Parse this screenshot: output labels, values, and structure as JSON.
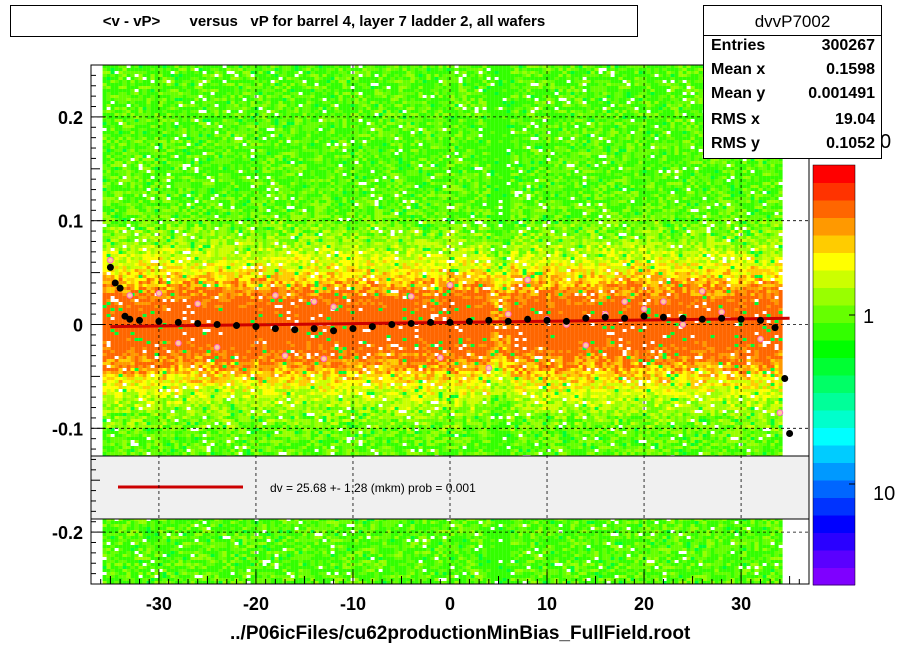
{
  "title": "<v - vP>       versus   vP for barrel 4, layer 7 ladder 2, all wafers",
  "stats": {
    "name": "dvvP7002",
    "rows": [
      {
        "label": "Entries",
        "value": "300267"
      },
      {
        "label": "Mean x",
        "value": "0.1598"
      },
      {
        "label": "Mean y",
        "value": "0.001491"
      },
      {
        "label": "RMS x",
        "value": "19.04"
      },
      {
        "label": "RMS y",
        "value": "0.1052"
      }
    ]
  },
  "footer": "../P06icFiles/cu62productionMinBias_FullField.root",
  "legend": {
    "text": "dv =   25.68 +-  1.28 (mkm) prob = 0.001",
    "line_color": "#cc0000"
  },
  "colors": {
    "fit_line": "#cc0000",
    "profile_points": "#000000",
    "open_markers": "#ff66cc"
  },
  "chart_data": {
    "type": "heatmap",
    "xlim": [
      -37,
      37
    ],
    "ylim": [
      -0.25,
      0.25
    ],
    "x_ticks": [
      -30,
      -20,
      -10,
      0,
      10,
      20,
      30
    ],
    "y_ticks": [
      -0.2,
      -0.1,
      0,
      0.1,
      0.2
    ],
    "x_tick_labels": [
      "-30",
      "-20",
      "-10",
      "0",
      "10",
      "20",
      "30"
    ],
    "y_tick_labels": [
      "-0.2",
      "-0.1",
      "0",
      "0.1",
      "0.2"
    ],
    "grid": true,
    "color_scale": {
      "type": "log",
      "tick_labels": [
        "1",
        "10"
      ],
      "top_label_partial": "0",
      "colors": [
        "#7f00ff",
        "#5a00ff",
        "#2a00ff",
        "#0000ff",
        "#0033ff",
        "#0066ff",
        "#0099ff",
        "#00ccff",
        "#00ffff",
        "#00ffcc",
        "#00ff99",
        "#00ff66",
        "#00ff33",
        "#00ff00",
        "#33ff00",
        "#66ff00",
        "#99ff00",
        "#ccff00",
        "#ffff00",
        "#ffcc00",
        "#ff9900",
        "#ff6600",
        "#ff3300",
        "#ff0000"
      ]
    },
    "profile": {
      "x": [
        -35,
        -34.5,
        -34,
        -33.5,
        -33,
        -32,
        -30,
        -28,
        -26,
        -24,
        -22,
        -20,
        -18,
        -16,
        -14,
        -12,
        -10,
        -8,
        -6,
        -4,
        -2,
        0,
        2,
        4,
        6,
        8,
        10,
        12,
        14,
        16,
        18,
        20,
        22,
        24,
        26,
        28,
        30,
        32,
        33.5,
        34.5,
        35
      ],
      "y": [
        0.055,
        0.04,
        0.035,
        0.008,
        0.005,
        0.004,
        0.003,
        0.002,
        0.001,
        0.0,
        -0.001,
        -0.002,
        -0.004,
        -0.005,
        -0.004,
        -0.006,
        -0.004,
        -0.002,
        0.0,
        0.001,
        0.002,
        0.002,
        0.003,
        0.004,
        0.003,
        0.005,
        0.004,
        0.003,
        0.006,
        0.007,
        0.006,
        0.008,
        0.007,
        0.006,
        0.005,
        0.006,
        0.005,
        0.004,
        -0.003,
        -0.052,
        -0.105
      ]
    },
    "open_markers": {
      "x": [
        -35,
        -33,
        -30,
        -28,
        -26,
        -24,
        -18,
        -17,
        -16,
        -14,
        -13,
        -12,
        -6,
        -4,
        -1,
        0,
        4,
        6,
        8,
        10,
        12,
        14,
        16,
        18,
        20,
        22,
        24,
        26,
        28,
        30,
        32,
        34
      ],
      "y": [
        0.062,
        0.028,
        0.03,
        -0.018,
        0.02,
        -0.022,
        0.028,
        -0.03,
        -0.005,
        0.022,
        -0.033,
        0.017,
        0.0,
        0.027,
        -0.032,
        0.038,
        -0.042,
        0.01,
        0.043,
        0.005,
        0.0,
        -0.02,
        0.01,
        0.022,
        0.015,
        0.022,
        0.0,
        0.032,
        0.012,
        0.005,
        -0.014,
        -0.085
      ]
    },
    "fit": {
      "x": [
        -35,
        35
      ],
      "y": [
        -0.002,
        0.006
      ]
    }
  }
}
